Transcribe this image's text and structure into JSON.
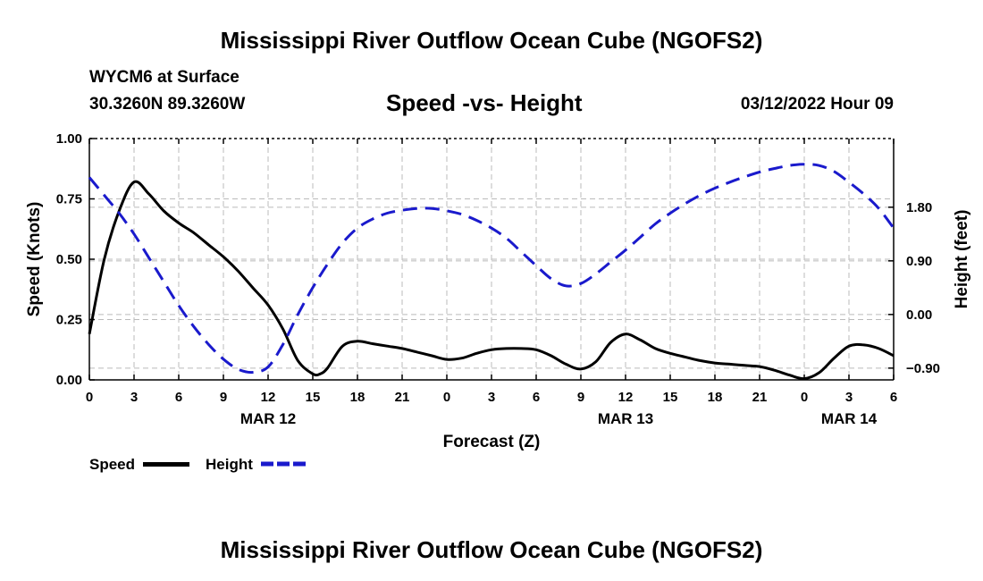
{
  "header": {
    "title": "Mississippi River Outflow Ocean Cube (NGOFS2)",
    "station": "WYCM6 at Surface",
    "coords": "30.3260N  89.3260W",
    "chart_title": "Speed -vs- Height",
    "datetime": "03/12/2022 Hour 09"
  },
  "legend": {
    "speed_label": "Speed",
    "height_label": "Height"
  },
  "footer": {
    "title": "Mississippi River Outflow Ocean Cube (NGOFS2)"
  },
  "colors": {
    "speed": "#000000",
    "height": "#1a1acc",
    "grid": "#bbbbbb"
  },
  "chart_data": {
    "type": "line",
    "title": "Speed -vs- Height",
    "xlabel": "Forecast (Z)",
    "ylabel": "Speed (Knots)",
    "y2label": "Height (feet)",
    "xlim": [
      0,
      54
    ],
    "ylim": [
      0,
      1
    ],
    "y2lim": [
      -1.0975,
      2.9525
    ],
    "x_ticks": [
      0,
      3,
      6,
      9,
      12,
      15,
      18,
      21,
      24,
      27,
      30,
      33,
      36,
      39,
      42,
      45,
      48,
      51,
      54
    ],
    "x_tick_labels": [
      "0",
      "3",
      "6",
      "9",
      "12",
      "15",
      "18",
      "21",
      "0",
      "3",
      "6",
      "9",
      "12",
      "15",
      "18",
      "21",
      "0",
      "3",
      "6"
    ],
    "date_labels": [
      {
        "x": 12,
        "label": "MAR 12"
      },
      {
        "x": 36,
        "label": "MAR 13"
      },
      {
        "x": 51,
        "label": "MAR 14"
      }
    ],
    "y_ticks": [
      0,
      0.25,
      0.5,
      0.75,
      1.0
    ],
    "y_tick_labels": [
      "0.00",
      "0.25",
      "0.50",
      "0.75",
      "1.00"
    ],
    "y2_ticks": [
      -0.9,
      0.0,
      0.9,
      1.8
    ],
    "y2_tick_labels": [
      "−0.90",
      "0.00",
      "0.90",
      "1.80"
    ],
    "series": [
      {
        "name": "Speed",
        "axis": "left",
        "style": "solid",
        "x": [
          0,
          1,
          2,
          3,
          4,
          5,
          6,
          7,
          8,
          9,
          10,
          11,
          12,
          13,
          14,
          15,
          15.5,
          16,
          17,
          18,
          19,
          20,
          21,
          22,
          23,
          24,
          25,
          26,
          27,
          28,
          29,
          30,
          31,
          32,
          33,
          34,
          35,
          36,
          37,
          38,
          39,
          40,
          41,
          42,
          43,
          44,
          45,
          46,
          47,
          48,
          49,
          50,
          51,
          52,
          53,
          54
        ],
        "values": [
          0.19,
          0.5,
          0.7,
          0.82,
          0.77,
          0.7,
          0.65,
          0.61,
          0.56,
          0.51,
          0.45,
          0.38,
          0.31,
          0.21,
          0.08,
          0.025,
          0.025,
          0.05,
          0.14,
          0.16,
          0.15,
          0.14,
          0.13,
          0.115,
          0.1,
          0.085,
          0.09,
          0.11,
          0.125,
          0.13,
          0.13,
          0.125,
          0.1,
          0.065,
          0.045,
          0.075,
          0.155,
          0.19,
          0.165,
          0.13,
          0.11,
          0.095,
          0.08,
          0.07,
          0.065,
          0.06,
          0.055,
          0.04,
          0.02,
          0.005,
          0.03,
          0.09,
          0.14,
          0.145,
          0.13,
          0.1
        ]
      },
      {
        "name": "Height",
        "axis": "right",
        "style": "dashed",
        "x": [
          0,
          1,
          2,
          3,
          4,
          5,
          6,
          7,
          8,
          9,
          10,
          11,
          12,
          13,
          14,
          15,
          16,
          17,
          18,
          19,
          20,
          21,
          22,
          23,
          24,
          25,
          26,
          27,
          28,
          29,
          30,
          31,
          32,
          33,
          34,
          35,
          36,
          37,
          38,
          39,
          40,
          41,
          42,
          43,
          44,
          45,
          46,
          47,
          48,
          49,
          50,
          51,
          52,
          53,
          54
        ],
        "values": [
          2.3,
          2.0,
          1.7,
          1.35,
          0.95,
          0.55,
          0.15,
          -0.2,
          -0.5,
          -0.75,
          -0.92,
          -0.97,
          -0.88,
          -0.5,
          0.0,
          0.45,
          0.85,
          1.2,
          1.45,
          1.6,
          1.7,
          1.75,
          1.78,
          1.78,
          1.74,
          1.68,
          1.58,
          1.45,
          1.28,
          1.05,
          0.82,
          0.6,
          0.48,
          0.52,
          0.68,
          0.88,
          1.08,
          1.3,
          1.52,
          1.7,
          1.86,
          2.0,
          2.12,
          2.22,
          2.31,
          2.39,
          2.45,
          2.5,
          2.52,
          2.5,
          2.4,
          2.22,
          2.02,
          1.78,
          1.45
        ]
      }
    ]
  }
}
